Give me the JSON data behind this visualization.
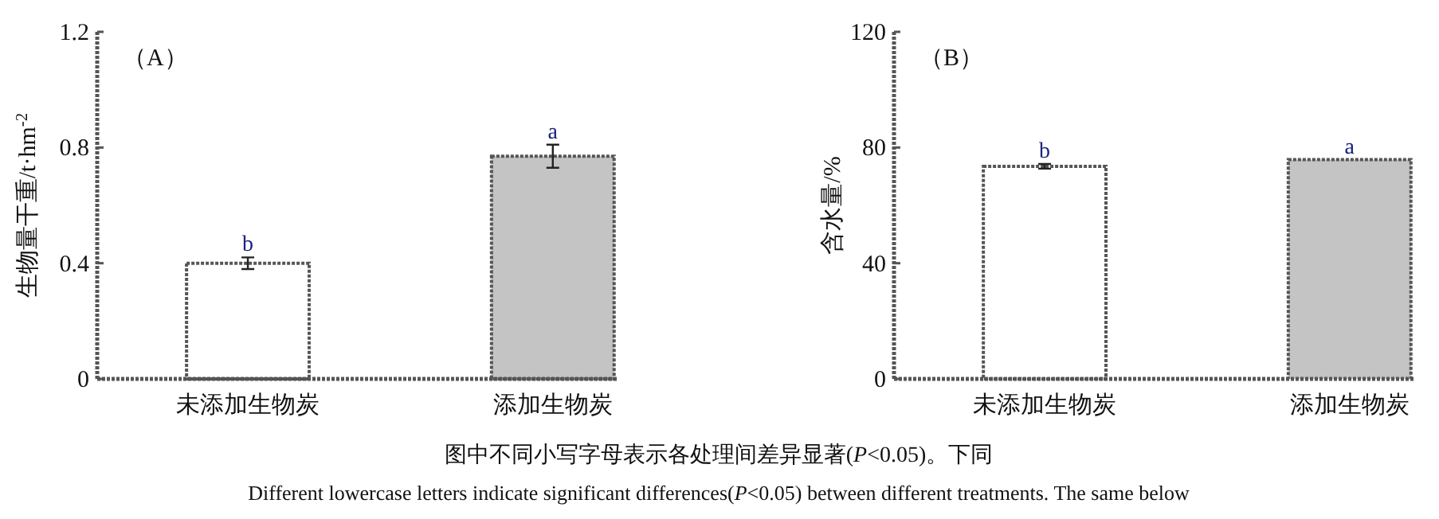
{
  "chart_data": [
    {
      "type": "bar",
      "title": "（A）",
      "ylabel": "生物量干重/t·hm$^{-2}$",
      "categories": [
        "未添加生物炭",
        "添加生物炭"
      ],
      "values": [
        0.4,
        0.77
      ],
      "errors": [
        0.02,
        0.04
      ],
      "colors": [
        "#ffffff",
        "#c4c4c4"
      ],
      "ylim": [
        0,
        1.2
      ],
      "yticks": [
        {
          "value": 0,
          "label": "0"
        },
        {
          "value": 0.4,
          "label": "0.4"
        },
        {
          "value": 0.8,
          "label": "0.8"
        },
        {
          "value": 1.2,
          "label": "1.2"
        }
      ],
      "annotations": [
        {
          "text": "b",
          "x": "未添加生物炭",
          "y": 0.42
        },
        {
          "text": "a",
          "x": "添加生物炭",
          "y": 0.81
        }
      ]
    },
    {
      "type": "bar",
      "title": "（B）",
      "ylabel": "含水量/%",
      "categories": [
        "未添加生物炭",
        "添加生物炭"
      ],
      "values": [
        73.5,
        75.8
      ],
      "errors": [
        0.8,
        null
      ],
      "colors": [
        "#ffffff",
        "#c4c4c4"
      ],
      "ylim": [
        0,
        120
      ],
      "yticks": [
        0,
        40,
        80,
        120
      ],
      "annotations": [
        {
          "text": "b",
          "x": "未添加生物炭",
          "y": 74.3
        },
        {
          "text": "a",
          "x": "添加生物炭",
          "y": 75.8
        },
        "图中不同小写字母表示各处理间差异显著(*P*<0.05)。下同",
        "Different lowercase letters indicate significant differences(*P*<0.05) between different treatments. The same below"
      ]
    }
  ]
}
